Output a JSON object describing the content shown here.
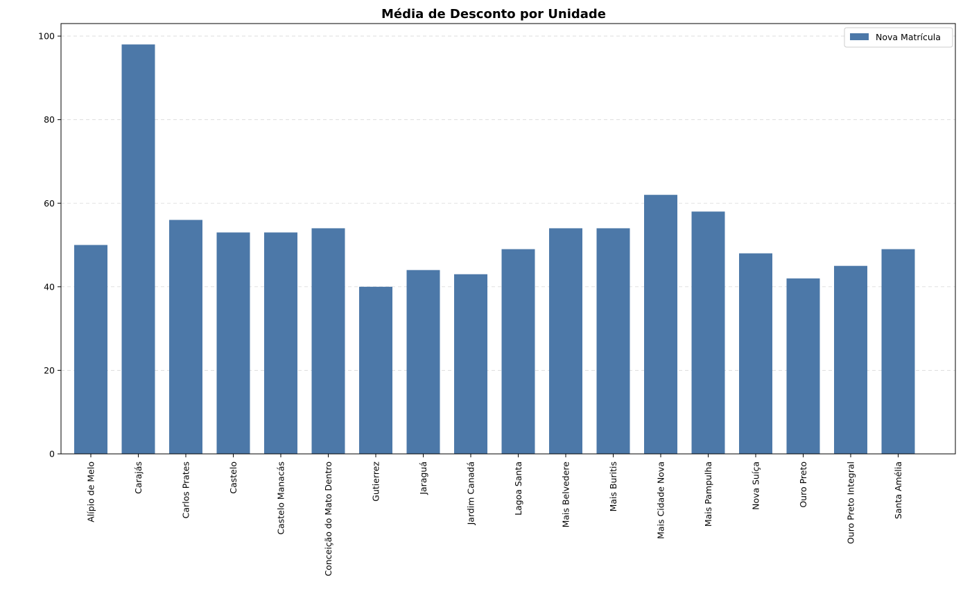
{
  "chart_data": {
    "type": "bar",
    "title": "Média de Desconto por Unidade",
    "xlabel": "",
    "ylabel": "",
    "categories": [
      "Alípio de Melo",
      "Carajás",
      "Carlos Prates",
      "Castelo",
      "Castelo Manacás",
      "Conceição do Mato Dentro",
      "Gutierrez",
      "Jaraguá",
      "Jardim Canadá",
      "Lagoa Santa",
      "Mais Belvedere",
      "Mais Buritis",
      "Mais Cidade Nova",
      "Mais Pampulha",
      "Nova Suíça",
      "Ouro Preto",
      "Ouro Preto Integral",
      "Santa Amélia"
    ],
    "series": [
      {
        "name": "Nova Matrícula",
        "color": "#4c78a8",
        "values": [
          50,
          98,
          56,
          53,
          53,
          54,
          40,
          44,
          43,
          49,
          54,
          54,
          62,
          58,
          48,
          42,
          45,
          49
        ]
      }
    ],
    "ylim": [
      0,
      103
    ],
    "yticks": [
      0,
      20,
      40,
      60,
      80,
      100
    ],
    "grid": "y-dashed",
    "legend": "top-right"
  }
}
